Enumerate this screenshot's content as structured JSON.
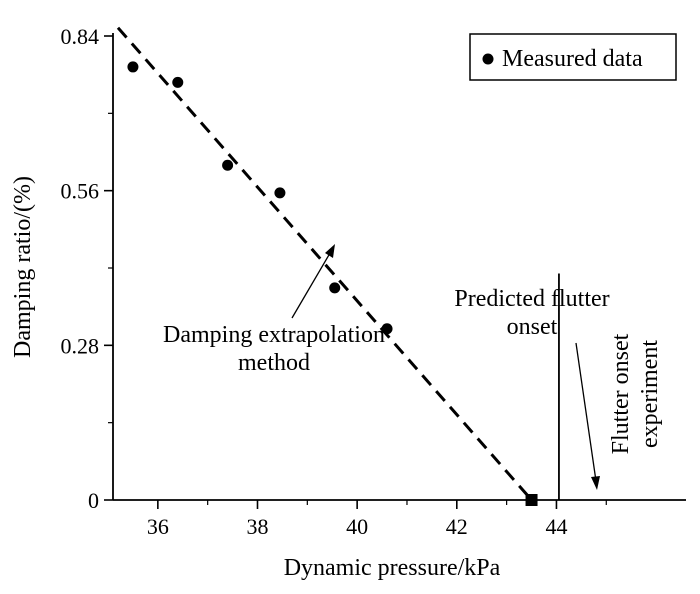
{
  "chart_data": {
    "type": "scatter",
    "title": "",
    "xlabel": "Dynamic pressure/kPa",
    "ylabel": "Damping ratio/(%)",
    "xlim": [
      35.1,
      46.6
    ],
    "ylim": [
      0,
      0.84
    ],
    "x_ticks": [
      36,
      38,
      40,
      42,
      44
    ],
    "y_ticks": [
      0,
      0.28,
      0.56,
      0.84
    ],
    "x_tick_labels": [
      "36",
      "38",
      "40",
      "42",
      "44"
    ],
    "y_tick_labels": [
      "0",
      "0.28",
      "0.56",
      "0.84"
    ],
    "series": [
      {
        "name": "Measured data",
        "kind": "points",
        "x": [
          35.5,
          36.4,
          37.4,
          38.45,
          39.55,
          40.6
        ],
        "y": [
          0.784,
          0.756,
          0.606,
          0.556,
          0.384,
          0.31
        ]
      },
      {
        "name": "Damping extrapolation method",
        "kind": "dashed-line",
        "x": [
          35.2,
          43.5
        ],
        "y": [
          0.855,
          0
        ]
      }
    ],
    "predicted_onset": {
      "x": 43.5,
      "y": 0
    },
    "experiment_onset": {
      "x": 44.05,
      "ymax": 0.41
    },
    "legend": {
      "position": "top-right",
      "label": "Measured data"
    },
    "annotations": {
      "extrapolation": [
        "Damping extrapolation",
        "method"
      ],
      "predicted": [
        "Predicted flutter",
        "onset"
      ],
      "experiment": [
        "Flutter onset",
        "experiment"
      ]
    }
  }
}
